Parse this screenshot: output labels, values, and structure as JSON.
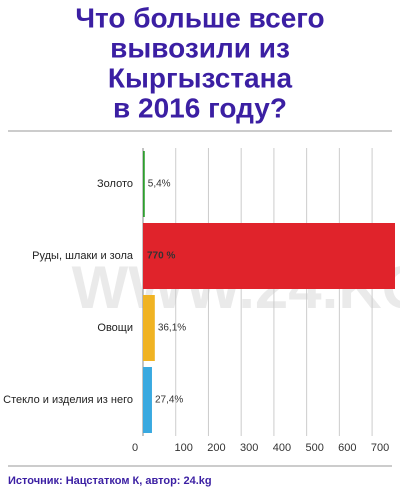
{
  "chart_data": {
    "type": "bar",
    "orientation": "horizontal",
    "title": [
      "Что больше всего",
      "вывозили из",
      "Кыргызстана",
      "в 2016 году?"
    ],
    "categories": [
      "Золото",
      "Руды, шлаки и зола",
      "Овощи",
      "Стекло и изделия из него"
    ],
    "values": [
      5.4,
      770,
      36.1,
      27.4
    ],
    "value_labels": [
      "5,4%",
      "770 %",
      "36,1%",
      "27,4%"
    ],
    "colors": [
      "#2e9e2e",
      "#e0232b",
      "#f0b323",
      "#39a9e0"
    ],
    "xlim": [
      0,
      770
    ],
    "xticks": [
      0,
      100,
      200,
      300,
      400,
      500,
      600,
      700
    ],
    "grid": true,
    "watermark": "WWW.24.KG",
    "source": "Источник: Нацстатком К, автор: 24.kg"
  }
}
